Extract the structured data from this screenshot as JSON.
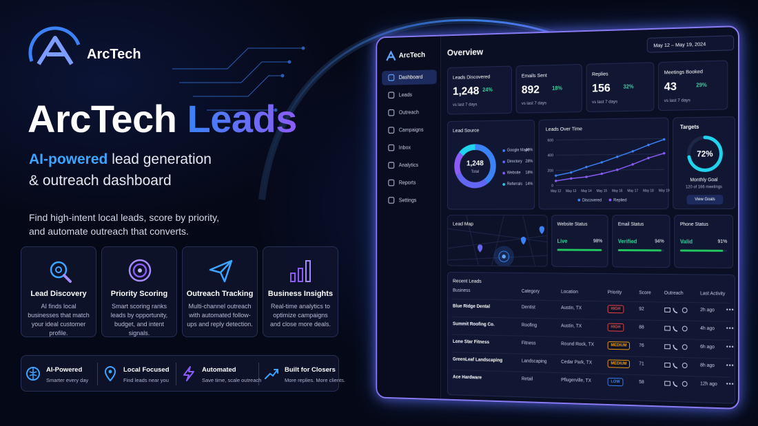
{
  "brand": {
    "name": "ArcTech"
  },
  "hero": {
    "title_main": "ArcTech",
    "title_accent": "Leads",
    "subtitle_accent": "AI-powered",
    "subtitle_rest": "lead generation",
    "subtitle_line2": "& outreach dashboard",
    "description": "Find high-intent local leads, score by priority, and automate outreach that converts."
  },
  "features": [
    {
      "title": "Lead Discovery",
      "text": "AI finds local businesses that match your ideal customer profile."
    },
    {
      "title": "Priority Scoring",
      "text": "Smart scoring ranks leads by opportunity, budget, and intent signals."
    },
    {
      "title": "Outreach Tracking",
      "text": "Multi-channel outreach with automated follow-ups and reply detection."
    },
    {
      "title": "Business Insights",
      "text": "Real-time analytics to optimize campaigns and close more deals."
    }
  ],
  "badges": [
    {
      "title": "AI-Powered",
      "text": "Smarter every day"
    },
    {
      "title": "Local Focused",
      "text": "Find leads near you"
    },
    {
      "title": "Automated",
      "text": "Save time, scale outreach"
    },
    {
      "title": "Built for Closers",
      "text": "More replies. More clients."
    }
  ],
  "dashboard": {
    "brand": "ArcTech",
    "nav": [
      "Dashboard",
      "Leads",
      "Outreach",
      "Campaigns",
      "Inbox",
      "Analytics",
      "Reports",
      "Settings"
    ],
    "heading": "Overview",
    "date_range": "May 12 – May 19, 2024",
    "kpis": [
      {
        "label": "Leads Discovered",
        "value": "1,248",
        "change": "24%",
        "note": "vs last 7 days"
      },
      {
        "label": "Emails Sent",
        "value": "892",
        "change": "18%",
        "note": "vs last 7 days"
      },
      {
        "label": "Replies",
        "value": "156",
        "change": "32%",
        "note": "vs last 7 days"
      },
      {
        "label": "Meetings Booked",
        "value": "43",
        "change": "29%",
        "note": "vs last 7 days"
      }
    ],
    "lead_source": {
      "title": "Lead Source",
      "total": "1,248",
      "total_label": "Total",
      "segments": [
        {
          "name": "Google Maps",
          "value": 40,
          "label": "40%",
          "color": "#3b82f6"
        },
        {
          "name": "Directory",
          "value": 28,
          "label": "28%",
          "color": "#6366f1"
        },
        {
          "name": "Website",
          "value": 18,
          "label": "18%",
          "color": "#8b5cf6"
        },
        {
          "name": "Referrals",
          "value": 14,
          "label": "14%",
          "color": "#22d3ee"
        }
      ]
    },
    "leads_over_time": {
      "title": "Leads Over Time",
      "categories": [
        "May 12",
        "May 13",
        "May 14",
        "May 15",
        "May 16",
        "May 17",
        "May 18",
        "May 19"
      ],
      "ylim": [
        0,
        600
      ],
      "yticks": [
        0,
        200,
        400,
        600
      ],
      "series": [
        {
          "name": "Discovered",
          "color": "#3b82f6",
          "values": [
            130,
            170,
            240,
            300,
            370,
            440,
            520,
            590
          ]
        },
        {
          "name": "Replied",
          "color": "#8b5cf6",
          "values": [
            60,
            90,
            110,
            150,
            200,
            270,
            350,
            410
          ]
        }
      ]
    },
    "targets": {
      "title": "Targets",
      "value": 72,
      "label": "72%",
      "goal": "Monthly Goal",
      "progress": "120 of 166 meetings",
      "button": "View Goals"
    },
    "lead_map": {
      "title": "Lead Map"
    },
    "status": [
      {
        "title": "Website Status",
        "state": "Live",
        "value": 98,
        "label": "98%"
      },
      {
        "title": "Email Status",
        "state": "Verified",
        "value": 94,
        "label": "94%"
      },
      {
        "title": "Phone Status",
        "state": "Valid",
        "value": 91,
        "label": "91%"
      }
    ],
    "recent": {
      "title": "Recent Leads",
      "columns": [
        "Business",
        "Category",
        "Location",
        "Priority",
        "Score",
        "Outreach",
        "Last Activity"
      ],
      "rows": [
        {
          "business": "Blue Ridge Dental",
          "category": "Dentist",
          "location": "Austin, TX",
          "priority": "HIGH",
          "priority_color": "#ef4444",
          "score": "92",
          "last_activity": "2h ago"
        },
        {
          "business": "Summit Roofing Co.",
          "category": "Roofing",
          "location": "Austin, TX",
          "priority": "HIGH",
          "priority_color": "#ef4444",
          "score": "88",
          "last_activity": "4h ago"
        },
        {
          "business": "Lone Star Fitness",
          "category": "Fitness",
          "location": "Round Rock, TX",
          "priority": "MEDIUM",
          "priority_color": "#f59e0b",
          "score": "76",
          "last_activity": "6h ago"
        },
        {
          "business": "GreenLeaf Landscaping",
          "category": "Landscaping",
          "location": "Cedar Park, TX",
          "priority": "MEDIUM",
          "priority_color": "#f59e0b",
          "score": "71",
          "last_activity": "8h ago"
        },
        {
          "business": "Ace Hardware",
          "category": "Retail",
          "location": "Pflugerville, TX",
          "priority": "LOW",
          "priority_color": "#3b82f6",
          "score": "58",
          "last_activity": "12h ago"
        }
      ]
    }
  }
}
